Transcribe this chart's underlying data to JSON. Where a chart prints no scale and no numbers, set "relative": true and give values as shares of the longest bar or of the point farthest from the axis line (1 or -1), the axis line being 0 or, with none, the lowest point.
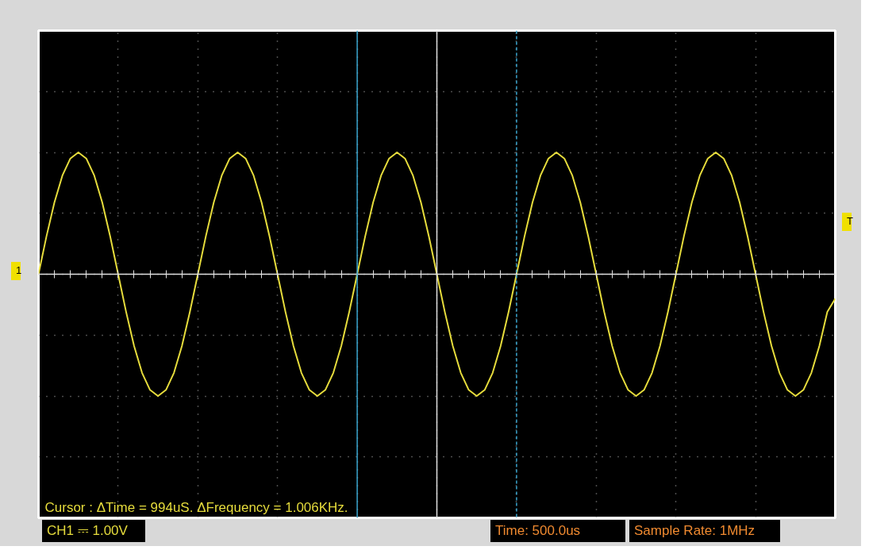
{
  "chart_data": {
    "type": "line",
    "relative": true,
    "color": "#e6dc3c",
    "marker": "none",
    "line_style": "solid",
    "grid": true,
    "tick_labels": false,
    "categories": [
      null,
      null,
      null,
      null,
      null,
      null,
      null,
      null,
      null,
      null,
      null,
      null,
      null,
      null,
      null,
      null,
      null,
      null,
      null,
      null,
      null,
      null,
      null,
      null,
      null,
      null,
      null,
      null,
      null,
      null,
      null,
      null,
      null,
      null,
      null,
      null,
      null,
      null,
      null,
      null,
      null,
      null,
      null,
      null,
      null,
      null,
      null,
      null,
      null,
      null,
      null,
      null,
      null,
      null,
      null,
      null,
      null,
      null,
      null,
      null,
      null,
      null,
      null,
      null,
      null,
      null,
      null,
      null,
      null,
      null,
      null,
      null,
      null,
      null,
      null,
      null,
      null,
      null,
      null,
      null,
      null,
      null,
      null,
      null,
      null,
      null,
      null,
      null,
      null,
      null,
      null,
      null,
      null,
      null,
      null,
      null,
      null,
      null,
      null,
      null,
      null
    ],
    "values": [
      0,
      0.31,
      0.59,
      0.81,
      0.95,
      1,
      0.95,
      0.81,
      0.59,
      0.31,
      0,
      -0.31,
      -0.59,
      -0.81,
      -0.95,
      -1,
      -0.95,
      -0.81,
      -0.59,
      -0.31,
      0,
      0.31,
      0.59,
      0.81,
      0.95,
      1,
      0.95,
      0.81,
      0.59,
      0.31,
      0,
      -0.31,
      -0.59,
      -0.81,
      -0.95,
      -1,
      -0.95,
      -0.81,
      -0.59,
      -0.31,
      0,
      0.31,
      0.59,
      0.81,
      0.95,
      1,
      0.95,
      0.81,
      0.59,
      0.31,
      0,
      -0.31,
      -0.59,
      -0.81,
      -0.95,
      -1,
      -0.95,
      -0.81,
      -0.59,
      -0.31,
      0,
      0.31,
      0.59,
      0.81,
      0.95,
      1,
      0.95,
      0.81,
      0.59,
      0.31,
      0,
      -0.31,
      -0.59,
      -0.81,
      -0.95,
      -1,
      -0.95,
      -0.81,
      -0.59,
      -0.31,
      0,
      0.31,
      0.59,
      0.81,
      0.95,
      1,
      0.95,
      0.81,
      0.59,
      0.31,
      0,
      -0.31,
      -0.59,
      -0.81,
      -0.95,
      -1,
      -0.95,
      -0.81,
      -0.59,
      -0.31,
      -0.2
    ],
    "annotations": [
      "Cursor : ΔTime = 994uS. ΔFrequency = 1.006KHz.",
      "CH1 ⎓  1.00V",
      "Time: 500.0us",
      "Sample Rate: 1MHz",
      "1",
      "T"
    ]
  }
}
